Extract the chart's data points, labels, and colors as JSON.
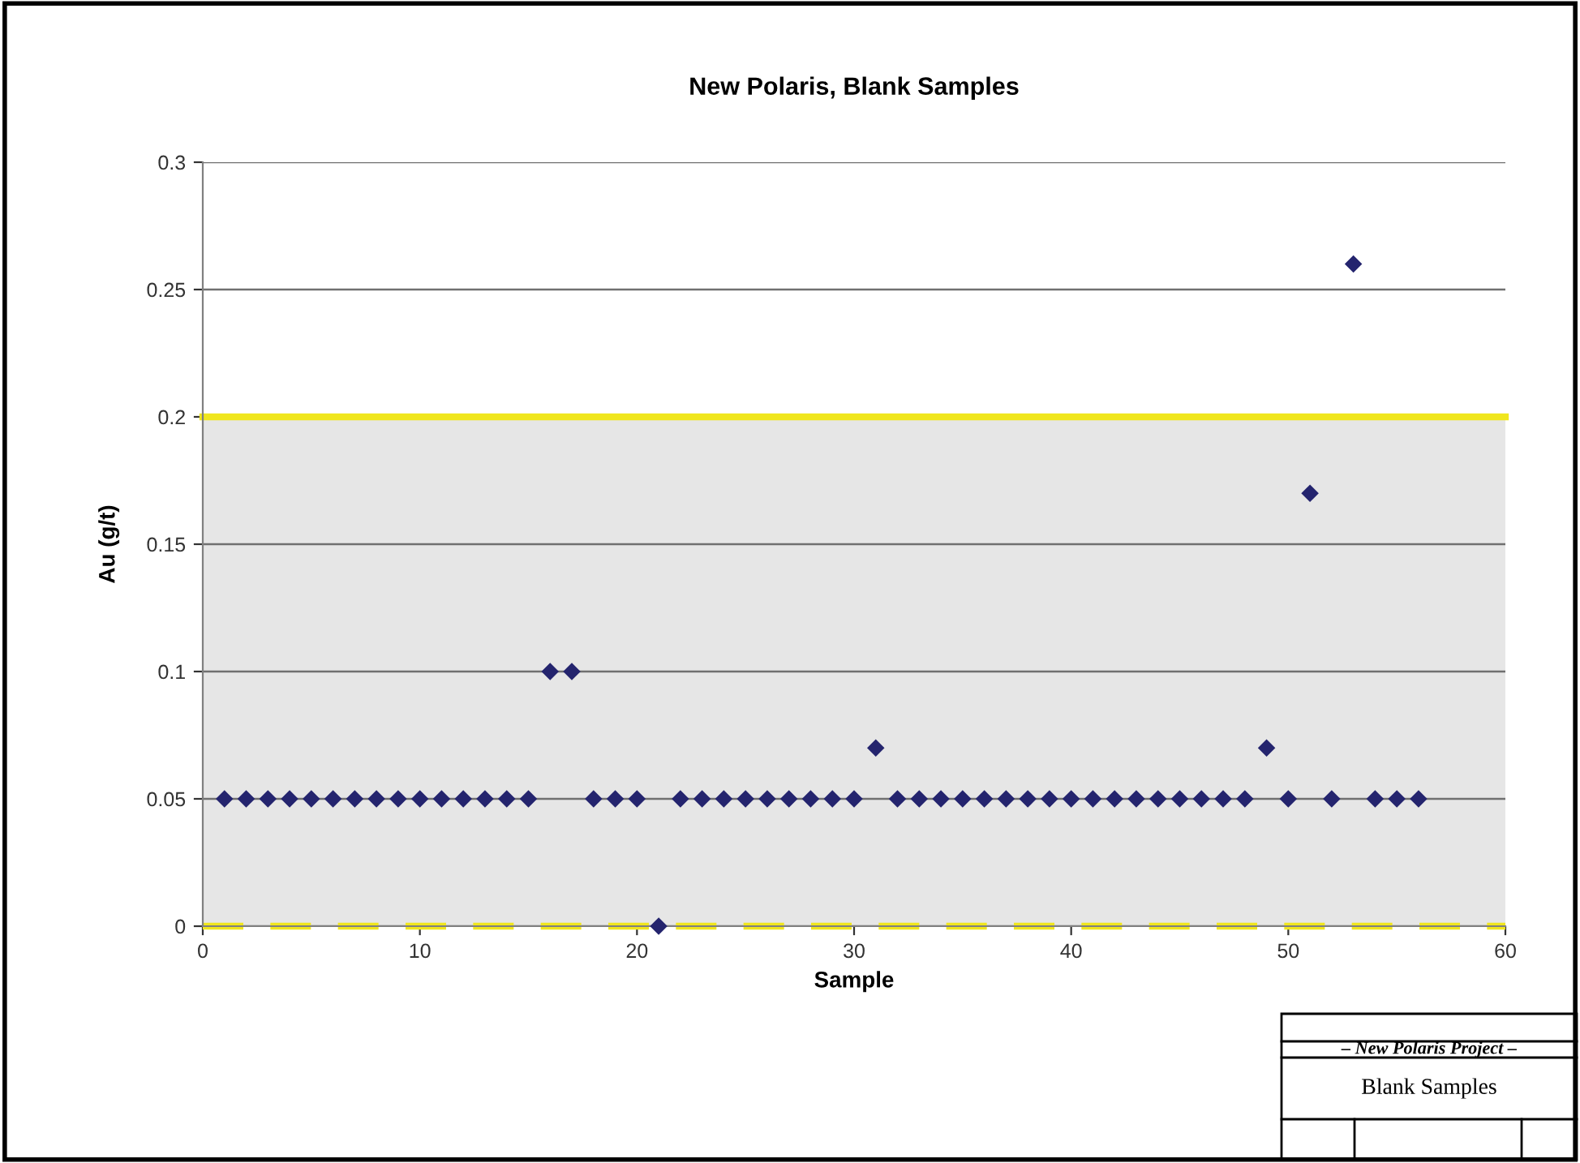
{
  "chart_data": {
    "type": "scatter",
    "title": "New Polaris, Blank Samples",
    "xlabel": "Sample",
    "ylabel": "Au (g/t)",
    "x": [
      1,
      2,
      3,
      4,
      5,
      6,
      7,
      8,
      9,
      10,
      11,
      12,
      13,
      14,
      15,
      16,
      17,
      18,
      19,
      20,
      21,
      22,
      23,
      24,
      25,
      26,
      27,
      28,
      29,
      30,
      31,
      32,
      33,
      34,
      35,
      36,
      37,
      38,
      39,
      40,
      41,
      42,
      43,
      44,
      45,
      46,
      47,
      48,
      49,
      50,
      51,
      52,
      53,
      54,
      55,
      56
    ],
    "series": [
      {
        "color": "#24246e",
        "values": [
          0.05,
          0.05,
          0.05,
          0.05,
          0.05,
          0.05,
          0.05,
          0.05,
          0.05,
          0.05,
          0.05,
          0.05,
          0.05,
          0.05,
          0.05,
          0.1,
          0.1,
          0.05,
          0.05,
          0.05,
          0,
          0.05,
          0.05,
          0.05,
          0.05,
          0.05,
          0.05,
          0.05,
          0.05,
          0.05,
          0.07,
          0.05,
          0.05,
          0.05,
          0.05,
          0.05,
          0.05,
          0.05,
          0.05,
          0.05,
          0.05,
          0.05,
          0.05,
          0.05,
          0.05,
          0.05,
          0.05,
          0.05,
          0.07,
          0.05,
          0.17,
          0.05,
          0.26,
          0.05,
          0.05,
          0.05
        ]
      }
    ],
    "marker": "diamond",
    "xlim": [
      0,
      60
    ],
    "xticks": [
      0,
      10,
      20,
      30,
      40,
      50,
      60
    ],
    "ylim": [
      0,
      0.3
    ],
    "yticks": [
      0,
      0.05,
      0.1,
      0.15,
      0.2,
      0.25,
      0.3
    ],
    "grid": "y",
    "bands": [
      {
        "axis": "y",
        "from": 0,
        "to": 0.2,
        "color": "#e6e6e6"
      }
    ],
    "ref_lines": [
      {
        "axis": "y",
        "value": 0.2,
        "color": "#f0e61e",
        "line_style": "solid"
      },
      {
        "axis": "y",
        "value": 0,
        "color": "#f0e61e",
        "line_style": "dashed"
      }
    ],
    "annotations": [
      "– New Polaris Project –",
      "Blank Samples"
    ]
  }
}
